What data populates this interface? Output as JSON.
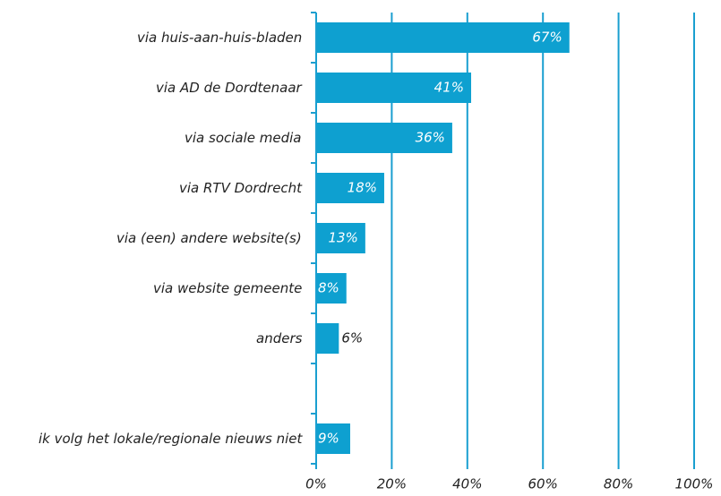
{
  "chart_data": {
    "type": "bar",
    "orientation": "horizontal",
    "categories": [
      "via huis-aan-huis-bladen",
      "via AD de Dordtenaar",
      "via sociale media",
      "via RTV Dordrecht",
      "via (een) andere website(s)",
      "via website gemeente",
      "anders",
      null,
      "ik volg het lokale/regionale nieuws niet"
    ],
    "values": [
      67,
      41,
      36,
      18,
      13,
      8,
      6,
      null,
      9
    ],
    "value_labels": [
      "67%",
      "41%",
      "36%",
      "18%",
      "13%",
      "8%",
      "6%",
      null,
      "9%"
    ],
    "color": "#0ea0d0",
    "xlim": [
      0,
      100
    ],
    "xticks": [
      {
        "value": 0,
        "label": "0%"
      },
      {
        "value": 20,
        "label": "20%"
      },
      {
        "value": 40,
        "label": "40%"
      },
      {
        "value": 60,
        "label": "60%"
      },
      {
        "value": 80,
        "label": "80%"
      },
      {
        "value": 100,
        "label": "100%"
      }
    ],
    "grid": true
  }
}
